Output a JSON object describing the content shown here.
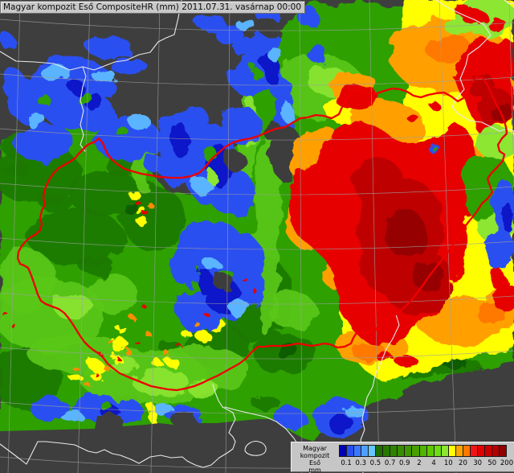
{
  "header": {
    "title": "Magyar kompozit Eső CompositeHR (mm) 2011.07.31. vasárnap 00:00"
  },
  "legend": {
    "title_lines": [
      "Magyar kompozit",
      "Eső",
      "mm"
    ],
    "labels": [
      "0.1",
      "0.3",
      "0.5",
      "0.7",
      "0.9",
      "2",
      "4",
      "10",
      "20",
      "30",
      "50",
      "200"
    ],
    "colors": [
      "#0000B4",
      "#2850F0",
      "#3C78FF",
      "#50A0FF",
      "#64C8FF",
      "#1E6E00",
      "#287800",
      "#308200",
      "#388C00",
      "#409600",
      "#48A000",
      "#52B400",
      "#5CC800",
      "#6EDC14",
      "#8CE632",
      "#FFFF00",
      "#FFA500",
      "#FF7800",
      "#F01414",
      "#E10000",
      "#C80000",
      "#B40000",
      "#8F0000"
    ]
  },
  "map": {
    "hungary_border_color": "#EE0000",
    "neighbor_border_color": "#E9E9E9",
    "no_data_color": "#3E3E3E",
    "grid_color": "#A0A0A0"
  }
}
